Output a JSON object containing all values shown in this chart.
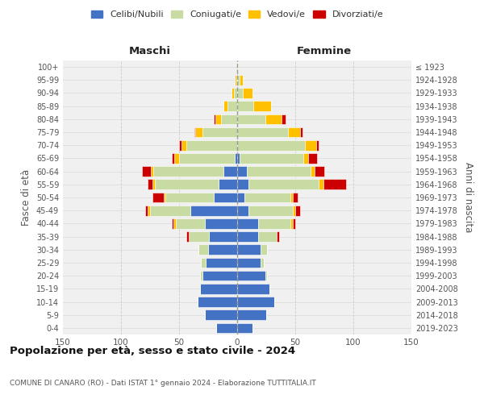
{
  "age_groups": [
    "0-4",
    "5-9",
    "10-14",
    "15-19",
    "20-24",
    "25-29",
    "30-34",
    "35-39",
    "40-44",
    "45-49",
    "50-54",
    "55-59",
    "60-64",
    "65-69",
    "70-74",
    "75-79",
    "80-84",
    "85-89",
    "90-94",
    "95-99",
    "100+"
  ],
  "birth_years": [
    "2019-2023",
    "2014-2018",
    "2009-2013",
    "2004-2008",
    "1999-2003",
    "1994-1998",
    "1989-1993",
    "1984-1988",
    "1979-1983",
    "1974-1978",
    "1969-1973",
    "1964-1968",
    "1959-1963",
    "1954-1958",
    "1949-1953",
    "1944-1948",
    "1939-1943",
    "1934-1938",
    "1929-1933",
    "1924-1928",
    "≤ 1923"
  ],
  "maschi_celibi": [
    18,
    28,
    34,
    32,
    30,
    27,
    25,
    24,
    28,
    40,
    20,
    16,
    12,
    2,
    0,
    0,
    0,
    0,
    0,
    0,
    0
  ],
  "maschi_coniugati": [
    0,
    0,
    0,
    0,
    2,
    4,
    8,
    18,
    25,
    35,
    42,
    55,
    60,
    48,
    44,
    30,
    14,
    8,
    3,
    1,
    0
  ],
  "maschi_vedovi": [
    0,
    0,
    0,
    0,
    0,
    0,
    0,
    0,
    2,
    2,
    1,
    2,
    2,
    4,
    4,
    6,
    5,
    4,
    2,
    1,
    0
  ],
  "maschi_divorziati": [
    0,
    0,
    0,
    0,
    0,
    0,
    0,
    2,
    1,
    2,
    10,
    4,
    8,
    2,
    2,
    1,
    1,
    0,
    0,
    0,
    0
  ],
  "femmine_celibi": [
    13,
    25,
    32,
    28,
    24,
    20,
    20,
    18,
    18,
    10,
    6,
    10,
    8,
    2,
    0,
    0,
    0,
    0,
    0,
    0,
    0
  ],
  "femmine_coniugati": [
    0,
    0,
    0,
    0,
    2,
    3,
    6,
    16,
    28,
    38,
    40,
    60,
    55,
    55,
    58,
    44,
    24,
    14,
    5,
    2,
    0
  ],
  "femmine_vedovi": [
    0,
    0,
    0,
    0,
    0,
    0,
    0,
    0,
    2,
    2,
    2,
    4,
    4,
    4,
    10,
    10,
    14,
    15,
    8,
    3,
    1
  ],
  "femmine_divorziati": [
    0,
    0,
    0,
    0,
    0,
    0,
    0,
    2,
    2,
    4,
    4,
    20,
    8,
    8,
    2,
    2,
    4,
    0,
    0,
    0,
    0
  ],
  "color_celibi": "#4472c4",
  "color_coniugati": "#c8dba3",
  "color_vedovi": "#ffc000",
  "color_divorziati": "#cc0000",
  "title": "Popolazione per età, sesso e stato civile - 2024",
  "subtitle": "COMUNE DI CANARO (RO) - Dati ISTAT 1° gennaio 2024 - Elaborazione TUTTITALIA.IT",
  "xlabel_left": "Maschi",
  "xlabel_right": "Femmine",
  "ylabel_left": "Fasce di età",
  "ylabel_right": "Anni di nascita",
  "xlim": 150,
  "bg_color": "#f0f0f0",
  "grid_color": "#cccccc"
}
